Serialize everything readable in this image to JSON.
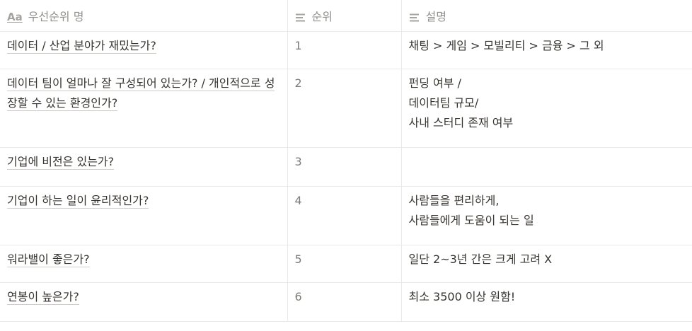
{
  "header": {
    "col1_icon": "Aa",
    "col1_label": "우선순위 명",
    "col2_label": "순위",
    "col3_label": "설명"
  },
  "rows": [
    {
      "name": "데이터 / 산업 분야가 재밌는가?",
      "rank": "1",
      "desc": "채팅 > 게임 > 모빌리티 > 금융 > 그 외"
    },
    {
      "name": "데이터 팀이 얼마나 잘 구성되어 있는가? / 개인적으로 성장할 수 있는 환경인가?",
      "rank": "2",
      "desc": "펀딩 여부 /\n데이터팀 규모/\n사내 스터디 존재 여부"
    },
    {
      "name": "기업에 비전은 있는가?",
      "rank": "3",
      "desc": ""
    },
    {
      "name": "기업이 하는 일이 윤리적인가?",
      "rank": "4",
      "desc": "사람들을 편리하게,\n사람들에게 도움이 되는 일"
    },
    {
      "name": "워라밸이 좋은가?",
      "rank": "5",
      "desc": "일단 2~3년 간은 크게 고려 X"
    },
    {
      "name": "연봉이 높은가?",
      "rank": "6",
      "desc": "최소 3500 이상 원함!"
    }
  ]
}
